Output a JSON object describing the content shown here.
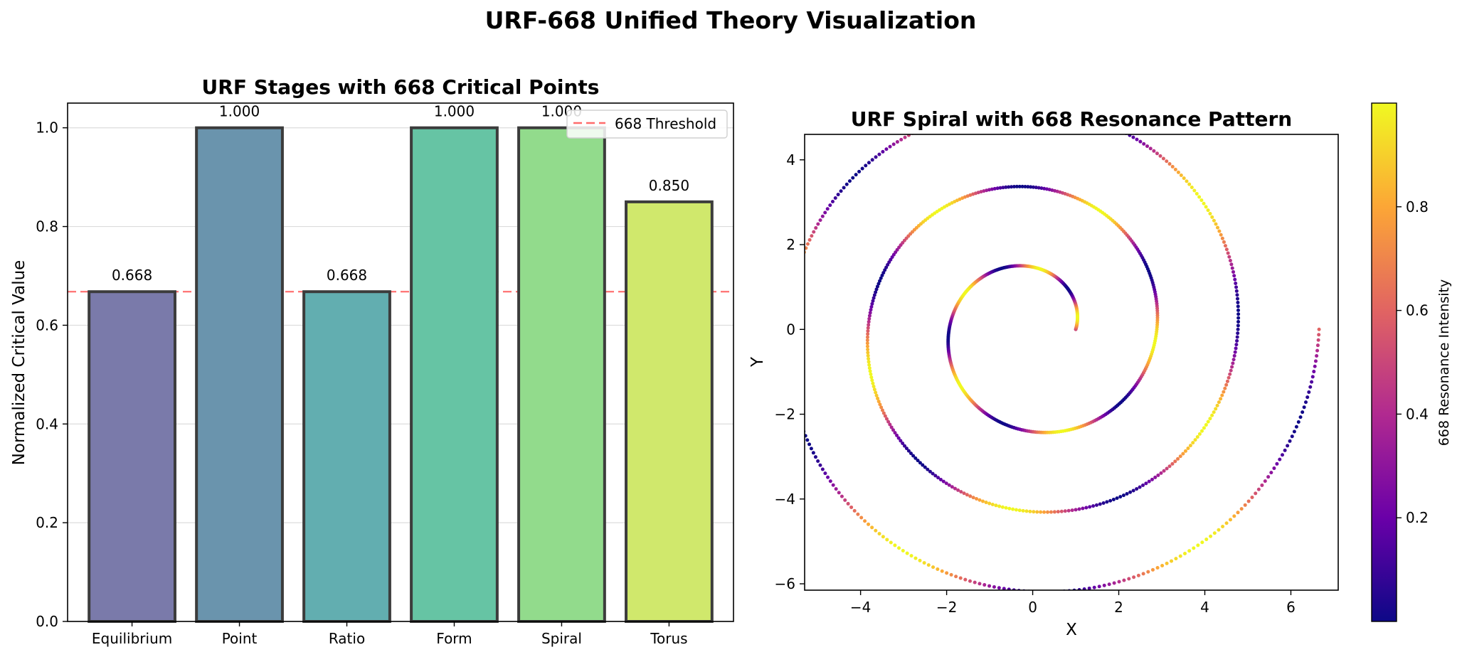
{
  "figure": {
    "suptitle": "URF-668 Unified Theory Visualization"
  },
  "chart_data": [
    {
      "type": "bar",
      "title": "URF Stages with 668 Critical Points",
      "xlabel": "",
      "ylabel": "Normalized Critical Value",
      "categories": [
        "Equilibrium",
        "Point",
        "Ratio",
        "Form",
        "Spiral",
        "Torus"
      ],
      "values": [
        0.668,
        1.0,
        0.668,
        1.0,
        1.0,
        0.85
      ],
      "value_labels": [
        "0.668",
        "1.000",
        "0.668",
        "1.000",
        "1.000",
        "0.850"
      ],
      "colors": [
        "#7a7aaa",
        "#6a94ad",
        "#62aeb0",
        "#66c4a4",
        "#92db8c",
        "#d0e86c"
      ],
      "ylim": [
        0,
        1.05
      ],
      "yticks": [
        0.0,
        0.2,
        0.4,
        0.6,
        0.8,
        1.0
      ],
      "ytick_labels": [
        "0.0",
        "0.2",
        "0.4",
        "0.6",
        "0.8",
        "1.0"
      ],
      "threshold": {
        "value": 0.668,
        "label": "668 Threshold",
        "color": "#ff6b6b"
      },
      "grid": "y",
      "legend": "top-right"
    },
    {
      "type": "scatter",
      "title": "URF Spiral with 668 Resonance Pattern",
      "xlabel": "X",
      "ylabel": "Y",
      "xlim": [
        -5.3,
        7.1
      ],
      "ylim": [
        -6.15,
        4.6
      ],
      "xticks": [
        -4,
        -2,
        0,
        2,
        4,
        6
      ],
      "xtick_labels": [
        "−4",
        "−2",
        "0",
        "2",
        "4",
        "6"
      ],
      "yticks": [
        -6,
        -4,
        -2,
        0,
        2,
        4
      ],
      "ytick_labels": [
        "−6",
        "−4",
        "−2",
        "0",
        "2",
        "4"
      ],
      "spiral": {
        "r_start": 1.0,
        "growth_per_radian": 0.3,
        "turns": 3,
        "points": 1000,
        "resonance_base": 0.668
      },
      "colorbar": {
        "label": "668 Resonance Intensity",
        "range": [
          0.0,
          1.0
        ],
        "ticks": [
          0.2,
          0.4,
          0.6,
          0.8
        ],
        "tick_labels": [
          "0.2",
          "0.4",
          "0.6",
          "0.8"
        ],
        "colormap": "plasma",
        "stops": [
          "#0d0887",
          "#6a00a8",
          "#b12a90",
          "#e16462",
          "#fca636",
          "#f0f921"
        ]
      }
    }
  ]
}
